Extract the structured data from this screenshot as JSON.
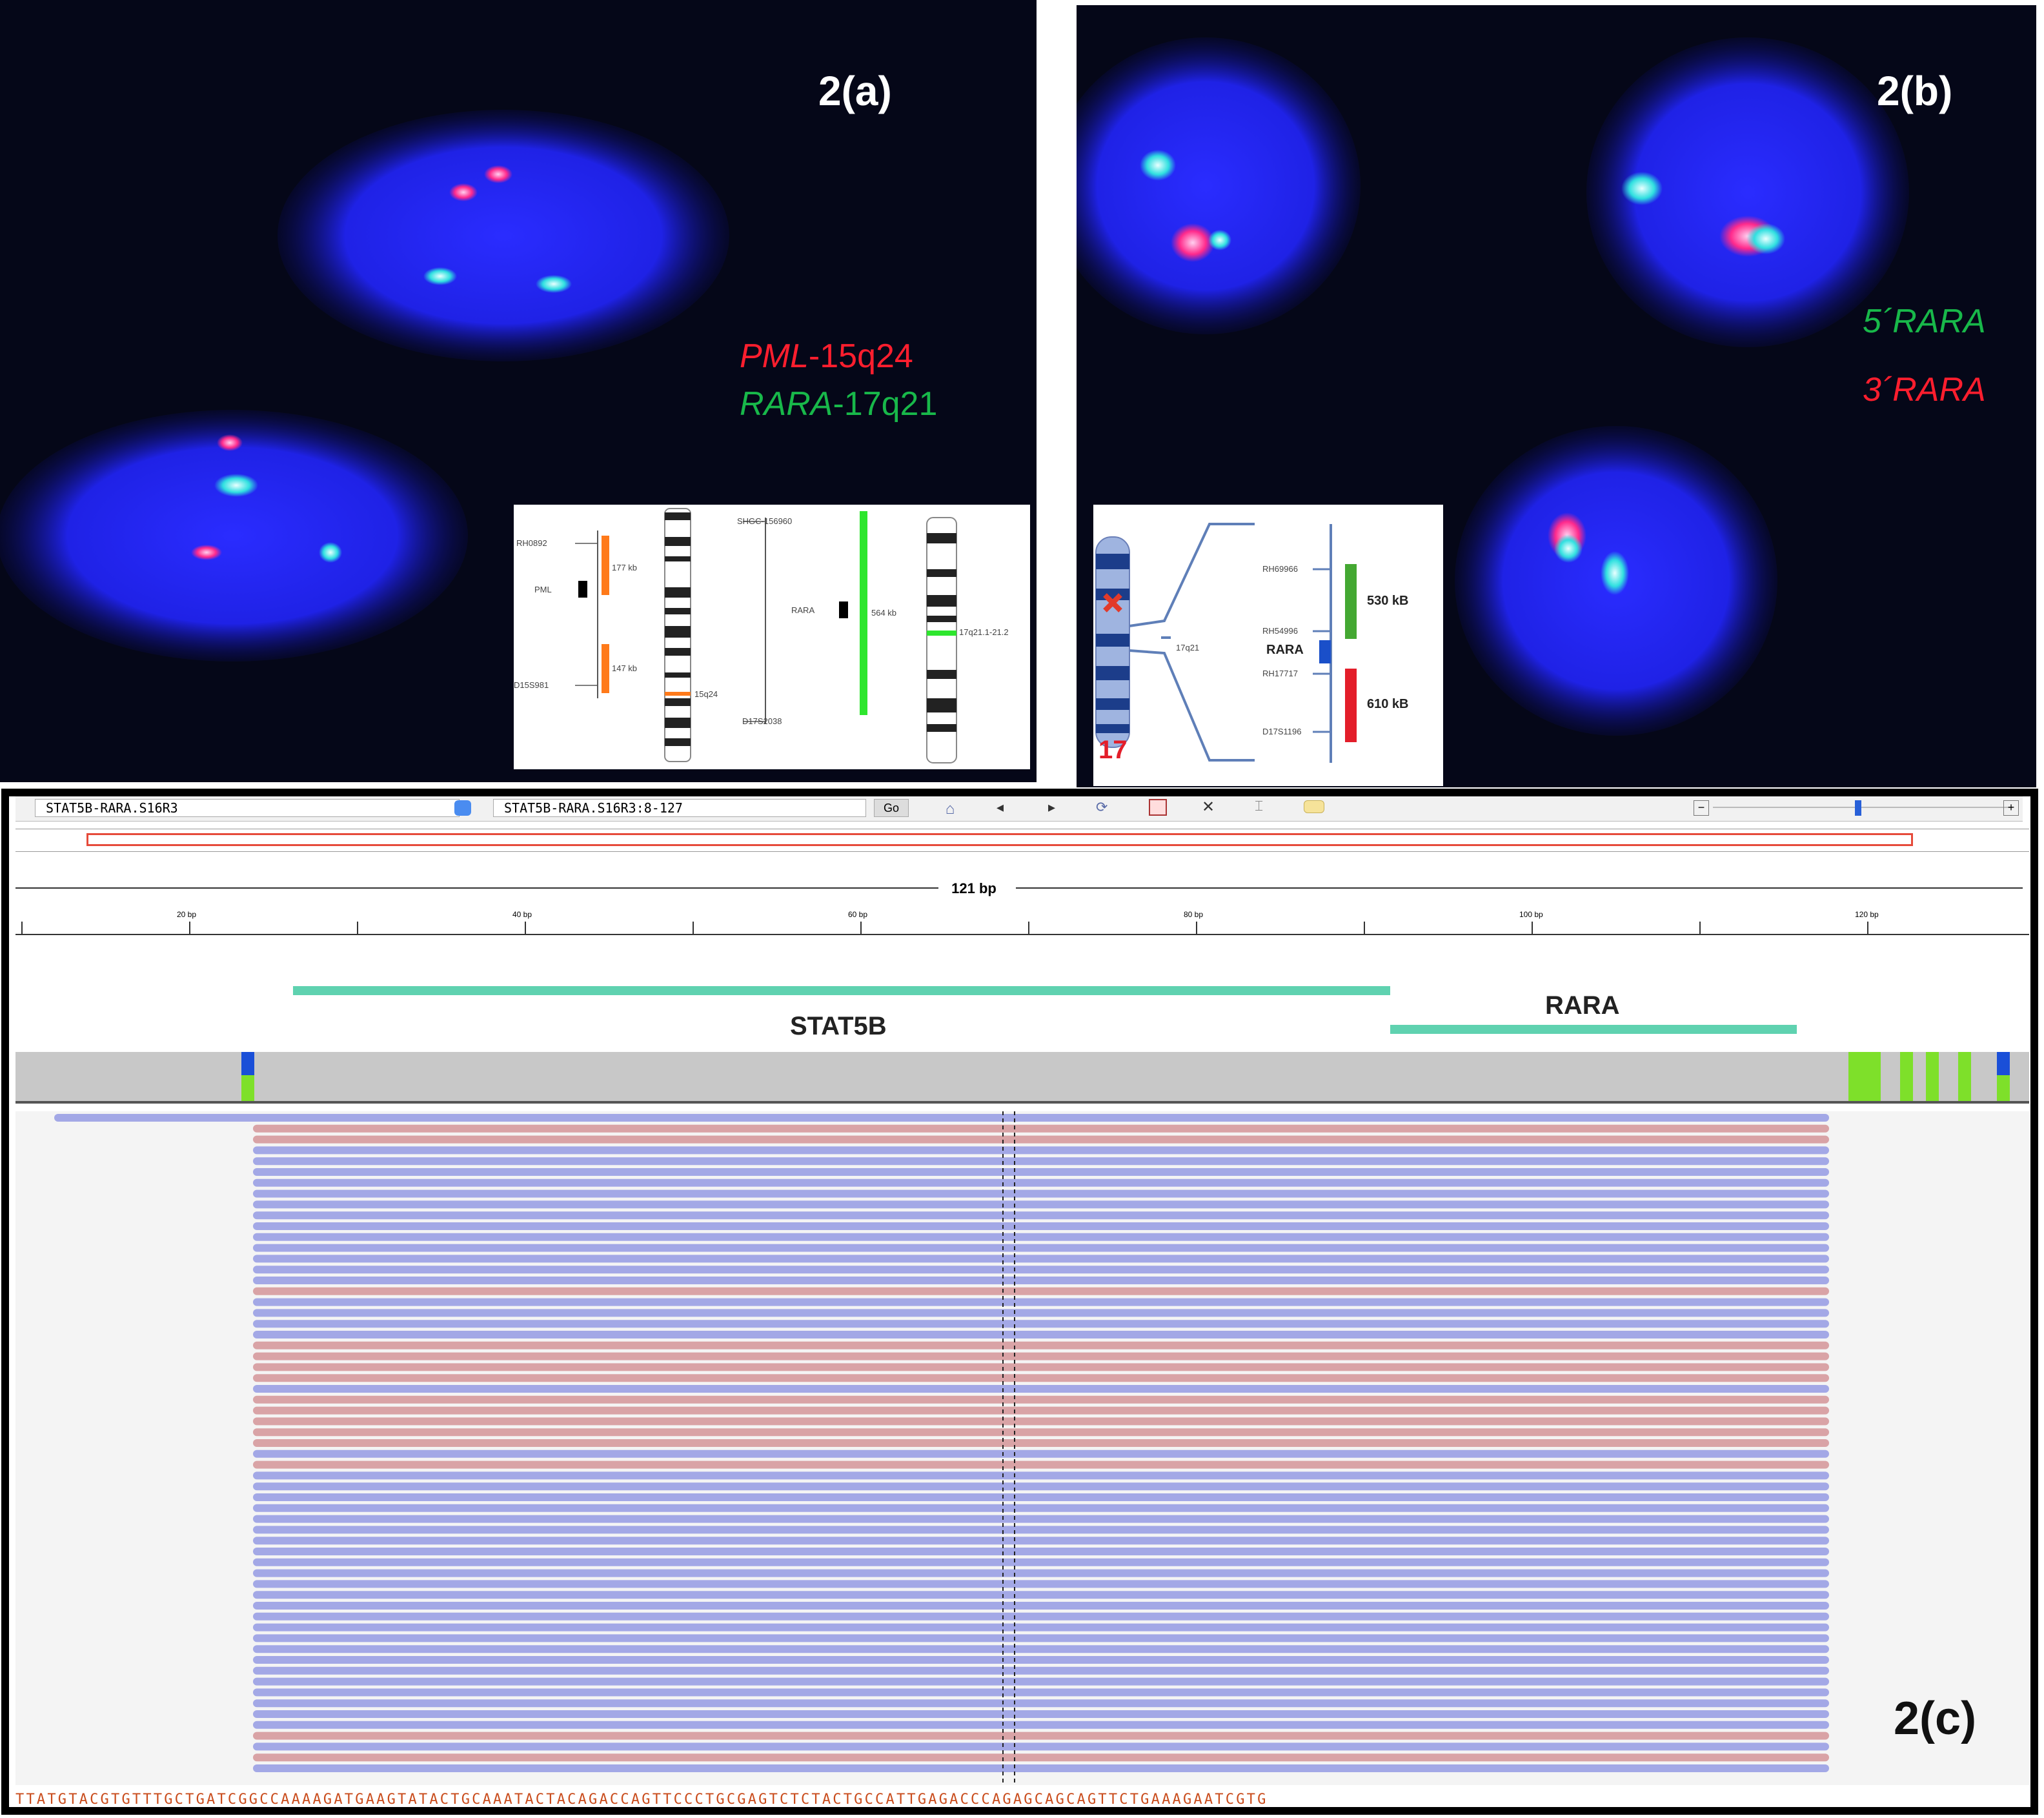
{
  "panel_a": {
    "label": "2(a)",
    "legend": {
      "pml_gene": "PML",
      "pml_loc": "-15q24",
      "rara_gene": "RARA",
      "rara_loc": "-17q21"
    },
    "inset": {
      "left_top_marker": "RH0892",
      "left_gene": "PML",
      "left_bottom_marker": "D15S981",
      "size_top": "177 kb",
      "size_bottom": "147 kb",
      "band_left": "15q24",
      "right_top_marker": "SHGC-156960",
      "right_gene": "RARA",
      "right_bottom_marker": "D17S2038",
      "size_right": "564 kb",
      "band_right": "17q21.1-21.2"
    }
  },
  "panel_b": {
    "label": "2(b)",
    "legend": {
      "five_prime": "5´RARA",
      "three_prime": "3´RARA"
    },
    "inset": {
      "chromosome": "17",
      "band": "17q21",
      "marker1": "RH69966",
      "marker2": "RH54996",
      "gene": "RARA",
      "marker3": "RH17717",
      "marker4": "D17S1196",
      "size_green": "530 kB",
      "size_red": "610 kB"
    }
  },
  "panel_c": {
    "label": "2(c)",
    "locus_box": "STAT5B-RARA.S16R3",
    "coords_box": "STAT5B-RARA.S16R3:8-127",
    "go_button": "Go",
    "ruler_span": "121 bp",
    "ruler_ticks": [
      "20 bp",
      "40 bp",
      "60 bp",
      "80 bp",
      "100 bp",
      "120 bp"
    ],
    "feature_stat5b": "STAT5B",
    "feature_rara": "RARA",
    "sequence": "TTATGTACGTGTTTGCTGATCGGCCAAAAGATGAAGTATACTGCAAATACTACAGACCAGTTCCCTGCGAGTCTCTACTGCCATTGAGACCCAGAGCAGCAGTTCTGAAAGAATCGTG",
    "colors": {
      "forward_read": "#a3a8e6",
      "reverse_read": "#d9a3a6",
      "feature": "#5fd2b0",
      "coverage": "#c8c8c8"
    },
    "read_strands": [
      "f",
      "r",
      "r",
      "f",
      "f",
      "f",
      "f",
      "f",
      "f",
      "f",
      "f",
      "f",
      "f",
      "f",
      "f",
      "f",
      "r",
      "f",
      "f",
      "f",
      "f",
      "r",
      "r",
      "r",
      "r",
      "f",
      "r",
      "r",
      "r",
      "r",
      "r",
      "f",
      "r",
      "f",
      "f",
      "f",
      "f",
      "f",
      "f",
      "f",
      "f",
      "f",
      "f",
      "f",
      "f",
      "f",
      "f",
      "f",
      "f",
      "f",
      "f",
      "f",
      "f",
      "f",
      "f",
      "f",
      "f",
      "r",
      "f",
      "r",
      "f"
    ]
  }
}
